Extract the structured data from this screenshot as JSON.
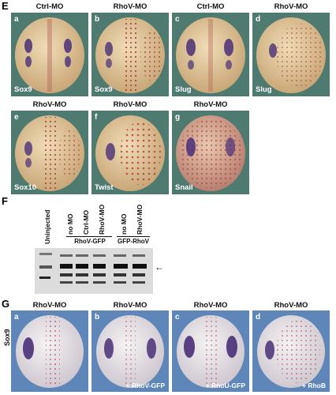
{
  "sections": {
    "E": "E",
    "F": "F",
    "G": "G"
  },
  "E": {
    "panels": [
      {
        "letter": "a",
        "title": "Ctrl-MO",
        "gene": "Sox9"
      },
      {
        "letter": "b",
        "title": "RhoV-MO",
        "gene": "Sox9"
      },
      {
        "letter": "c",
        "title": "Ctrl-MO",
        "gene": "Slug"
      },
      {
        "letter": "d",
        "title": "RhoV-MO",
        "gene": "Slug"
      },
      {
        "letter": "e",
        "title": "RhoV-MO",
        "gene": "Sox10"
      },
      {
        "letter": "f",
        "title": "RhoV-MO",
        "gene": "Twist"
      },
      {
        "letter": "g",
        "title": "RhoV-MO",
        "gene": "Snail"
      }
    ]
  },
  "F": {
    "lanes": [
      "Uninjected",
      "no MO",
      "Ctrl-MO",
      "RhoV-MO",
      "no MO",
      "RhoV-MO"
    ],
    "groups": [
      "RhoV-GFP",
      "GFP-RhoV"
    ],
    "arrow": "←"
  },
  "G": {
    "side_label": "Sox9",
    "panels": [
      {
        "letter": "a",
        "title": "RhoV-MO",
        "note": ""
      },
      {
        "letter": "b",
        "title": "RhoV-MO",
        "note": "+ RhoV-GFP"
      },
      {
        "letter": "c",
        "title": "RhoV-MO",
        "note": "+ RhoU-GFP"
      },
      {
        "letter": "d",
        "title": "RhoV-MO",
        "note": "+ RhoB"
      }
    ]
  },
  "colors": {
    "E_bg": "#4f7a70",
    "G_bg": "#5f86b8",
    "embryo": "#e2c79a",
    "stain_purple": "#4a2f78",
    "stain_red": "#b43a3a"
  }
}
